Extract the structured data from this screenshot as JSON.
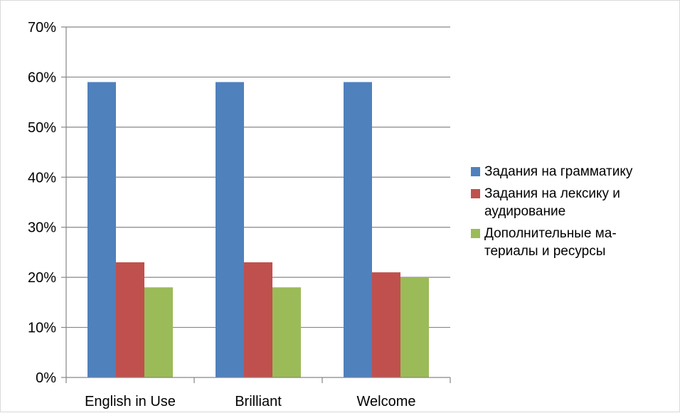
{
  "chart_data": {
    "type": "bar",
    "categories": [
      "English in Use",
      "Brilliant",
      "Welcome"
    ],
    "series": [
      {
        "name": "Задания на грамматику",
        "values": [
          59,
          59,
          59
        ],
        "color": "#4f81bd"
      },
      {
        "name": "Задания на лексику и\nаудирование",
        "values": [
          23,
          23,
          21
        ],
        "color": "#c0504d"
      },
      {
        "name": "Дополнительные ма-\nтериалы и ресурсы",
        "values": [
          18,
          18,
          20
        ],
        "color": "#9bbb59"
      }
    ],
    "ylim": [
      0,
      70
    ],
    "yticks": [
      "0%",
      "10%",
      "20%",
      "30%",
      "40%",
      "50%",
      "60%",
      "70%"
    ],
    "grid": true,
    "legend_position": "right",
    "title": "",
    "xlabel": "",
    "ylabel": ""
  }
}
